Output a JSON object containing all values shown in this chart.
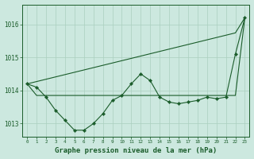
{
  "background_color": "#cce8df",
  "grid_color": "#aacfbf",
  "line_color": "#1a5c2a",
  "xlabel": "Graphe pression niveau de la mer (hPa)",
  "xlabel_fontsize": 6.5,
  "ylabel_ticks": [
    1013,
    1014,
    1015,
    1016
  ],
  "xlim": [
    -0.5,
    23.5
  ],
  "ylim": [
    1012.6,
    1016.6
  ],
  "x": [
    0,
    1,
    2,
    3,
    4,
    5,
    6,
    7,
    8,
    9,
    10,
    11,
    12,
    13,
    14,
    15,
    16,
    17,
    18,
    19,
    20,
    21,
    22,
    23
  ],
  "series_main": [
    1014.2,
    1014.1,
    1013.8,
    1013.4,
    1013.1,
    1012.8,
    1012.8,
    1013.0,
    1013.3,
    1013.7,
    1013.85,
    1014.2,
    1014.5,
    1014.3,
    1013.8,
    1013.65,
    1013.6,
    1013.65,
    1013.7,
    1013.8,
    1013.75,
    1013.8,
    1015.1,
    1016.2
  ],
  "series_flat": [
    1014.2,
    1013.85,
    1013.85,
    1013.85,
    1013.85,
    1013.85,
    1013.85,
    1013.85,
    1013.85,
    1013.85,
    1013.85,
    1013.85,
    1013.85,
    1013.85,
    1013.85,
    1013.85,
    1013.85,
    1013.85,
    1013.85,
    1013.85,
    1013.85,
    1013.85,
    1013.85,
    1016.2
  ],
  "series_diag": [
    1014.2,
    1014.27,
    1014.34,
    1014.41,
    1014.48,
    1014.55,
    1014.62,
    1014.69,
    1014.76,
    1014.83,
    1014.9,
    1014.97,
    1015.04,
    1015.11,
    1015.18,
    1015.25,
    1015.32,
    1015.39,
    1015.46,
    1015.53,
    1015.6,
    1015.67,
    1015.74,
    1016.2
  ]
}
